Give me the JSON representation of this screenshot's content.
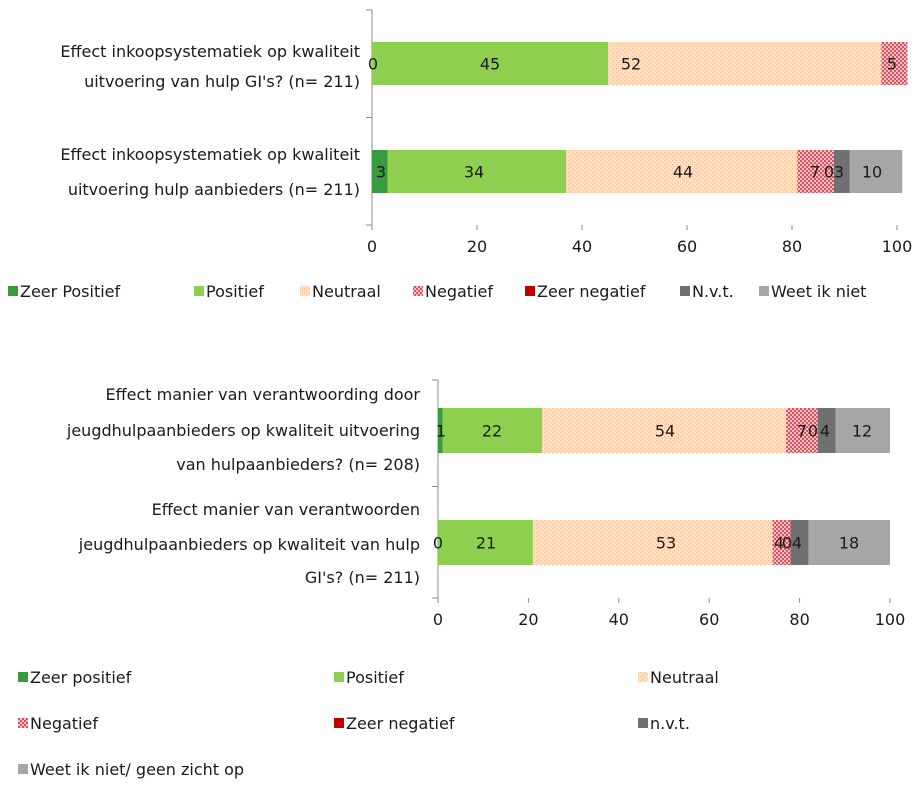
{
  "chart_data": [
    {
      "type": "bar",
      "orientation": "horizontal",
      "stacked": true,
      "categories": [
        [
          "Effect inkoopsystematiek op kwaliteit",
          "uitvoering van hulp GI's? (n= 211)"
        ],
        [
          "Effect inkoopsystematiek op kwaliteit",
          "uitvoering hulp aanbieders (n= 211)"
        ]
      ],
      "series": [
        {
          "name": "Zeer Positief",
          "color": "#3a9a3e",
          "values": [
            0,
            3
          ]
        },
        {
          "name": "Positief",
          "color": "#8fcf4f",
          "values": [
            45,
            34
          ]
        },
        {
          "name": "Neutraal",
          "color": "#fbd6b9",
          "values": [
            52,
            44
          ]
        },
        {
          "name": "Negatief",
          "color": "#e58c95",
          "values": [
            5,
            7
          ]
        },
        {
          "name": "Zeer negatief",
          "color": "#c00000",
          "values": [
            0,
            0
          ]
        },
        {
          "name": "N.v.t.",
          "color": "#707070",
          "values": [
            0,
            3
          ]
        },
        {
          "name": "Weet ik niet",
          "color": "#a6a6a6",
          "values": [
            0,
            10
          ]
        }
      ],
      "data_labels": [
        [
          [
            "0",
            "45",
            "52",
            "5"
          ]
        ],
        [
          [
            "3",
            "34",
            "44",
            "7",
            "0",
            "3",
            "10"
          ]
        ]
      ],
      "xlim": [
        0,
        100
      ],
      "xticks": [
        0,
        20,
        40,
        60,
        80,
        100
      ],
      "legend_placement": "bottom",
      "grid": false
    },
    {
      "type": "bar",
      "orientation": "horizontal",
      "stacked": true,
      "categories": [
        [
          "Effect manier van verantwoording door",
          "jeugdhulpaanbieders op kwaliteit uitvoering",
          "van hulpaanbieders? (n= 208)"
        ],
        [
          "Effect manier van verantwoorden",
          "jeugdhulpaanbieders op kwaliteit van hulp",
          "GI's? (n= 211)"
        ]
      ],
      "series": [
        {
          "name": "Zeer positief",
          "color": "#3a9a3e",
          "values": [
            1,
            0
          ]
        },
        {
          "name": "Positief",
          "color": "#8fcf4f",
          "values": [
            22,
            21
          ]
        },
        {
          "name": "Neutraal",
          "color": "#fbd6b9",
          "values": [
            54,
            53
          ]
        },
        {
          "name": "Negatief",
          "color": "#e58c95",
          "values": [
            7,
            4
          ]
        },
        {
          "name": "Zeer negatief",
          "color": "#c00000",
          "values": [
            0,
            0
          ]
        },
        {
          "name": "n.v.t.",
          "color": "#707070",
          "values": [
            4,
            4
          ]
        },
        {
          "name": "Weet ik niet/ geen zicht op",
          "color": "#a6a6a6",
          "values": [
            12,
            18
          ]
        }
      ],
      "data_labels": [
        [
          "1",
          "22",
          "54",
          "7",
          "0",
          "4",
          "12"
        ],
        [
          "0",
          "21",
          "53",
          "4",
          "0",
          "4",
          "18"
        ]
      ],
      "xlim": [
        0,
        100
      ],
      "xticks": [
        0,
        20,
        40,
        60,
        80,
        100
      ],
      "legend_placement": "bottom",
      "grid": false
    }
  ]
}
